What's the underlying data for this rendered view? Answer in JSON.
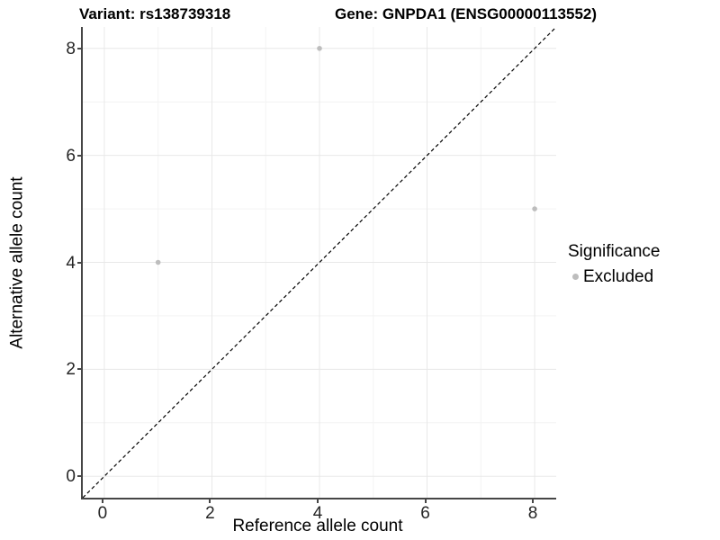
{
  "titles": {
    "variant": "Variant: rs138739318",
    "gene": "Gene: GNPDA1 (ENSG00000113552)"
  },
  "chart_data": {
    "type": "scatter",
    "title": "Variant: rs138739318    Gene: GNPDA1 (ENSG00000113552)",
    "xlabel": "Reference allele count",
    "ylabel": "Alternative allele count",
    "xlim": [
      -0.4,
      8.4
    ],
    "ylim": [
      -0.4,
      8.4
    ],
    "x_ticks": [
      0,
      2,
      4,
      6,
      8
    ],
    "y_ticks": [
      0,
      2,
      4,
      6,
      8
    ],
    "x_minor_ticks": [
      1,
      3,
      5,
      7
    ],
    "y_minor_ticks": [
      1,
      3,
      5,
      7
    ],
    "grid": "major+minor on white panel",
    "series": [
      {
        "name": "Excluded",
        "color": "#bdbdbd",
        "points": [
          {
            "x": 1,
            "y": 4
          },
          {
            "x": 4,
            "y": 8
          },
          {
            "x": 8,
            "y": 5
          }
        ]
      }
    ],
    "reference_line": {
      "type": "identity y=x",
      "style": "dashed",
      "color": "#000000",
      "from": [
        -0.4,
        -0.4
      ],
      "to": [
        8.4,
        8.4
      ]
    },
    "legend": {
      "title": "Significance",
      "position": "right",
      "entries": [
        {
          "label": "Excluded",
          "color": "#bdbdbd"
        }
      ]
    }
  },
  "colors": {
    "background": "#ffffff",
    "grid_major": "#e8e8e8",
    "grid_minor": "#f3f3f3",
    "axis_line": "#464646",
    "tick_label": "#262626",
    "point": "#bdbdbd"
  }
}
